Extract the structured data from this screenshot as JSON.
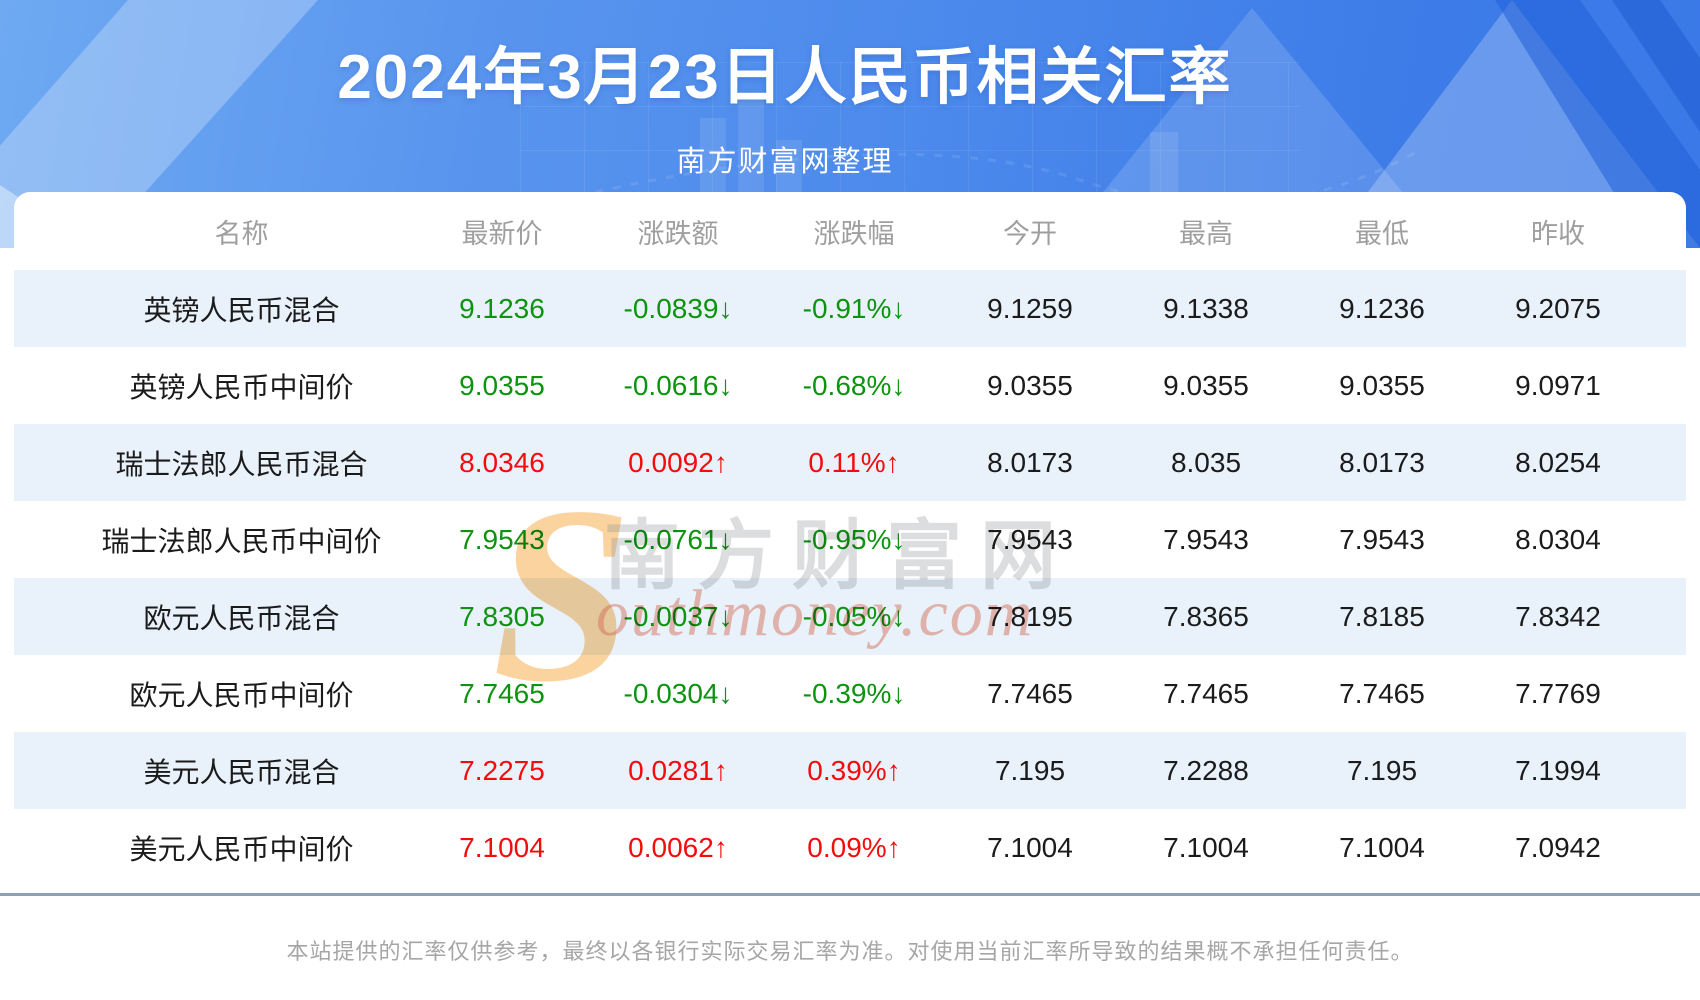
{
  "header": {
    "title": "2024年3月23日人民币相关汇率",
    "subtitle": "南方财富网整理"
  },
  "table": {
    "columns": [
      "名称",
      "最新价",
      "涨跌额",
      "涨跌幅",
      "今开",
      "最高",
      "最低",
      "昨收"
    ],
    "rows": [
      {
        "name": "英镑人民币混合",
        "latest": "9.1236",
        "change": "-0.0839↓",
        "change_pct": "-0.91%↓",
        "open": "9.1259",
        "high": "9.1338",
        "low": "9.1236",
        "prev_close": "9.2075",
        "direction": "down"
      },
      {
        "name": "英镑人民币中间价",
        "latest": "9.0355",
        "change": "-0.0616↓",
        "change_pct": "-0.68%↓",
        "open": "9.0355",
        "high": "9.0355",
        "low": "9.0355",
        "prev_close": "9.0971",
        "direction": "down"
      },
      {
        "name": "瑞士法郎人民币混合",
        "latest": "8.0346",
        "change": "0.0092↑",
        "change_pct": "0.11%↑",
        "open": "8.0173",
        "high": "8.035",
        "low": "8.0173",
        "prev_close": "8.0254",
        "direction": "up"
      },
      {
        "name": "瑞士法郎人民币中间价",
        "latest": "7.9543",
        "change": "-0.0761↓",
        "change_pct": "-0.95%↓",
        "open": "7.9543",
        "high": "7.9543",
        "low": "7.9543",
        "prev_close": "8.0304",
        "direction": "down"
      },
      {
        "name": "欧元人民币混合",
        "latest": "7.8305",
        "change": "-0.0037↓",
        "change_pct": "-0.05%↓",
        "open": "7.8195",
        "high": "7.8365",
        "low": "7.8185",
        "prev_close": "7.8342",
        "direction": "down"
      },
      {
        "name": "欧元人民币中间价",
        "latest": "7.7465",
        "change": "-0.0304↓",
        "change_pct": "-0.39%↓",
        "open": "7.7465",
        "high": "7.7465",
        "low": "7.7465",
        "prev_close": "7.7769",
        "direction": "down"
      },
      {
        "name": "美元人民币混合",
        "latest": "7.2275",
        "change": "0.0281↑",
        "change_pct": "0.39%↑",
        "open": "7.195",
        "high": "7.2288",
        "low": "7.195",
        "prev_close": "7.1994",
        "direction": "up"
      },
      {
        "name": "美元人民币中间价",
        "latest": "7.1004",
        "change": "0.0062↑",
        "change_pct": "0.09%↑",
        "open": "7.1004",
        "high": "7.1004",
        "low": "7.1004",
        "prev_close": "7.0942",
        "direction": "up"
      }
    ]
  },
  "watermark": {
    "s_glyph": "S",
    "cn": "南方财富网",
    "en": "outhmoney.com"
  },
  "footer": {
    "disclaimer": "本站提供的汇率仅供参考，最终以各银行实际交易汇率为准。对使用当前汇率所导致的结果概不承担任何责任。"
  },
  "colors": {
    "up_red": "#f40b0b",
    "down_green": "#0e9310",
    "row_alt_blue": "#e9f1fb",
    "header_text_gray": "#9f9f9f",
    "divider_slate": "#8ca1b5",
    "hero_blue_left": "#6ea9f2",
    "hero_blue_right": "#3a79e7"
  }
}
